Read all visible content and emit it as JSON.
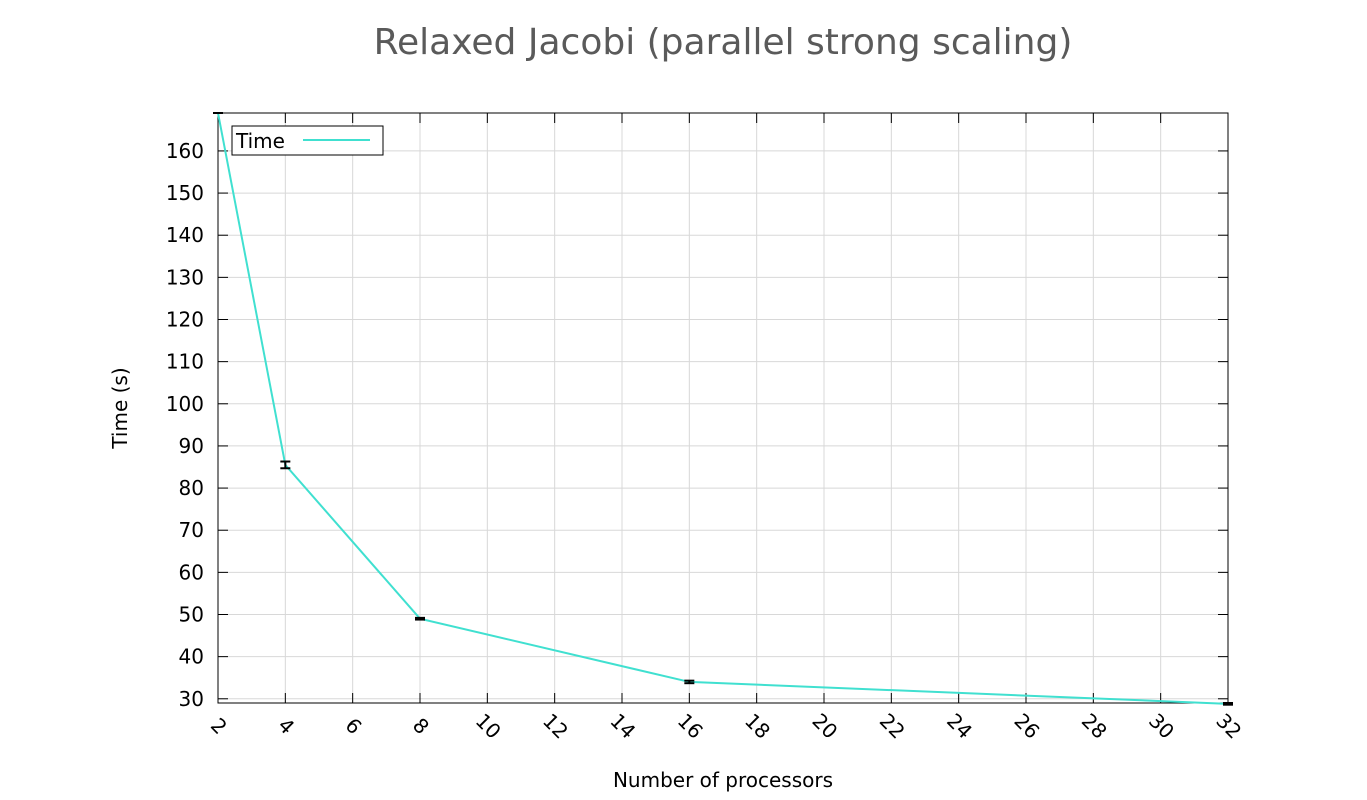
{
  "chart_data": {
    "type": "line",
    "title": "Relaxed Jacobi (parallel strong scaling)",
    "xlabel": "Number of processors",
    "ylabel": "Time (s)",
    "xlim": [
      2,
      32
    ],
    "ylim": [
      29,
      169
    ],
    "x_ticks": [
      2,
      4,
      6,
      8,
      10,
      12,
      14,
      16,
      18,
      20,
      22,
      24,
      26,
      28,
      30,
      32
    ],
    "y_ticks": [
      30,
      40,
      50,
      60,
      70,
      80,
      90,
      100,
      110,
      120,
      130,
      140,
      150,
      160
    ],
    "grid": true,
    "legend_position": "top-left",
    "series": [
      {
        "name": "Time",
        "color": "#40e0d0",
        "x": [
          2,
          4,
          8,
          16,
          32
        ],
        "y": [
          169,
          85.5,
          49,
          34,
          28.8
        ],
        "error": [
          0,
          0.8,
          0.2,
          0.3,
          0.2
        ]
      }
    ]
  }
}
